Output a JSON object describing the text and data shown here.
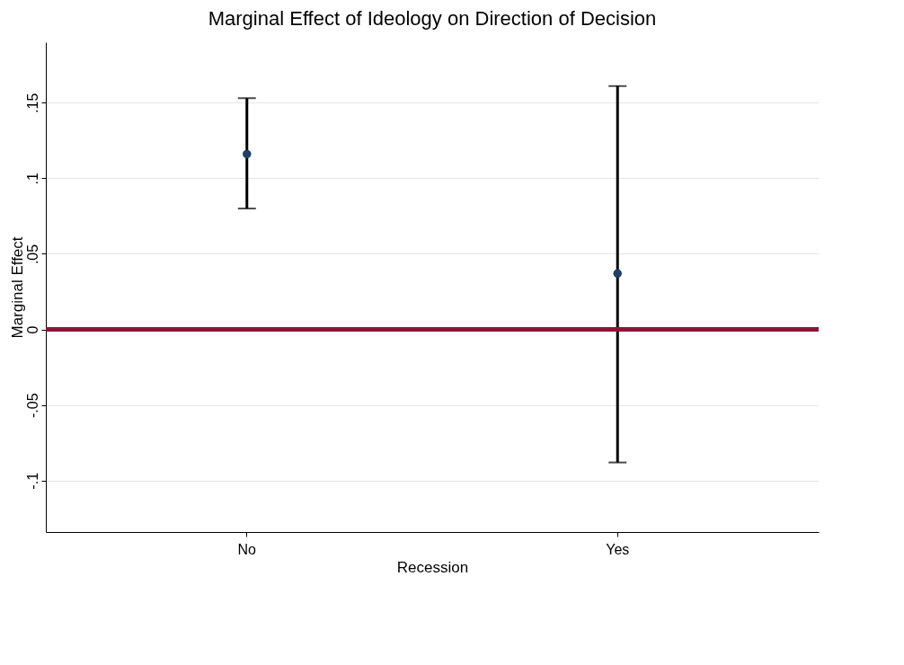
{
  "chart_data": {
    "type": "scatter",
    "title": "Marginal Effect of Ideology on Direction of Decision",
    "xlabel": "Recession",
    "ylabel": "Marginal Effect",
    "categories": [
      "No",
      "Yes"
    ],
    "series": [
      {
        "color": "#1f3f66",
        "values": [
          0.116,
          0.037
        ],
        "errors": [
          [
            0.08,
            0.153
          ],
          [
            -0.088,
            0.161
          ]
        ]
      }
    ],
    "ylim": [
      -0.134,
      0.19
    ],
    "yticks": [
      {
        "value": -0.1,
        "label": "-.1"
      },
      {
        "value": -0.05,
        "label": "-.05"
      },
      0,
      {
        "value": 0.05,
        "label": ".05"
      },
      {
        "value": 0.1,
        "label": ".1"
      },
      {
        "value": 0.15,
        "label": ".15"
      }
    ],
    "ref_lines": [
      {
        "axis": "y",
        "value": 0,
        "color": "#8b1538"
      }
    ],
    "grid": "y",
    "marker": "circle"
  }
}
